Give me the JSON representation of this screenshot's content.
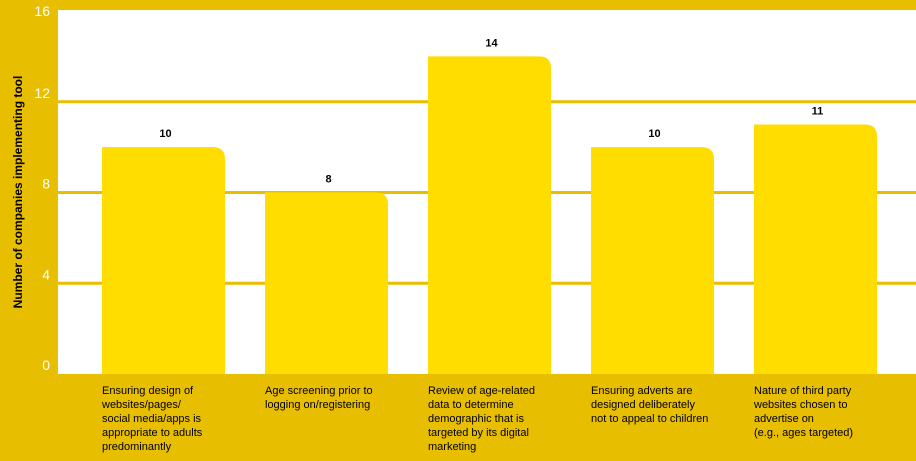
{
  "chart_data": {
    "type": "bar",
    "categories": [
      "Ensuring design of\nwebsites/pages/\nsocial media/apps is\nappropriate to adults\npredominantly",
      "Age screening prior to\nlogging on/registering",
      "Review of age-related\ndata to determine\ndemographic that is\ntargeted by its digital\nmarketing",
      "Ensuring adverts are\ndesigned deliberately\nnot to appeal to children",
      "Nature of third party\nwebsites chosen to\nadvertise on\n(e.g., ages targeted)"
    ],
    "values": [
      10,
      8,
      14,
      10,
      11
    ],
    "value_labels": [
      "10",
      "8",
      "14",
      "10",
      "11"
    ],
    "ylabel": "Number of companies implementing tool",
    "ylim": [
      0,
      16
    ],
    "yticks": [
      0,
      4,
      8,
      12,
      16
    ],
    "ytick_labels": [
      "0",
      "4",
      "8",
      "12",
      "16"
    ],
    "grid": true,
    "colors": {
      "background": "#E8BE00",
      "plot_area": "#FFFFFF",
      "bar": "#FFDD00",
      "gridline": "#E8BE00",
      "tick_text": "#FFFFFF",
      "text": "#000000"
    }
  }
}
